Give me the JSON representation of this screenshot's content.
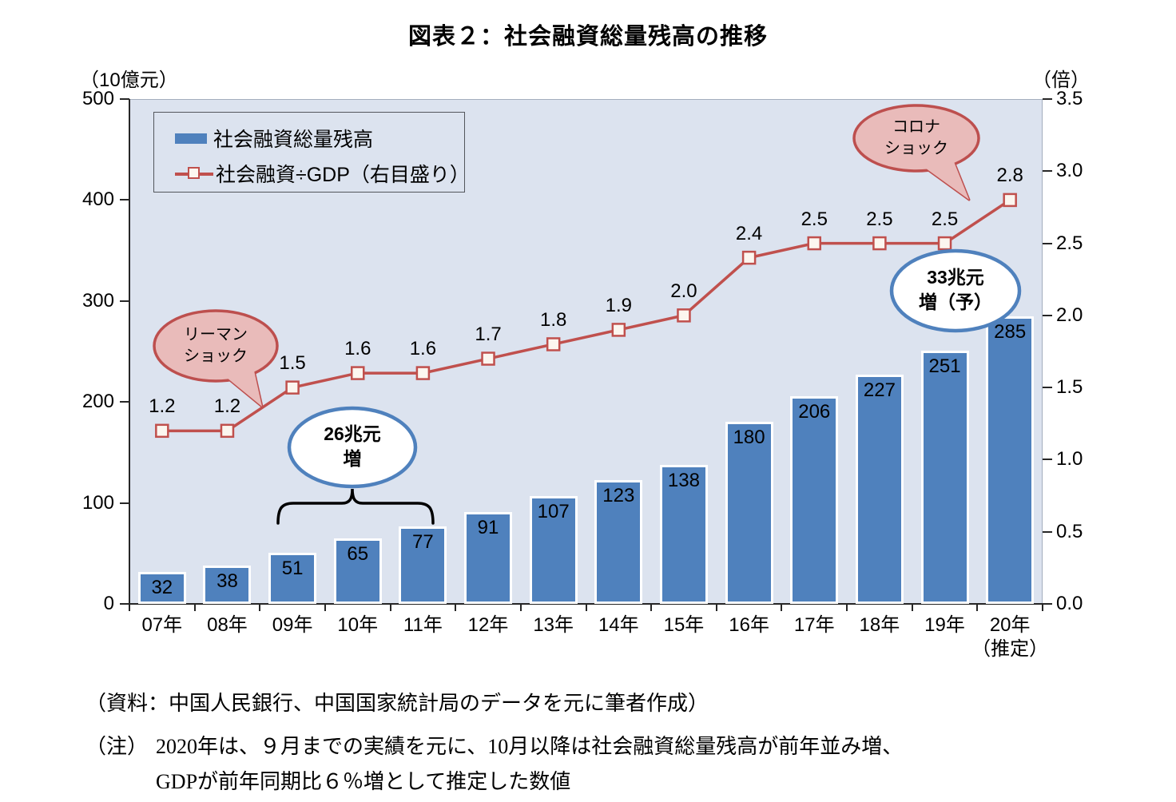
{
  "title": "図表２：社会融資総量残高の推移",
  "axes": {
    "left_unit": "（10億元）",
    "right_unit": "（倍）"
  },
  "legend": {
    "bar": "社会融資総量残高",
    "line": "社会融資÷GDP（右目盛り）"
  },
  "annotations": {
    "lehman": {
      "line1": "リーマン",
      "line2": "ショック"
    },
    "corona": {
      "line1": "コロナ",
      "line2": "ショック"
    },
    "increase26": {
      "line1": "26兆元",
      "line2": "増"
    },
    "increase33": {
      "line1": "33兆元",
      "line2": "増（予）"
    }
  },
  "footer": {
    "source": "（資料：中国人民銀行、中国国家統計局のデータを元に筆者作成）",
    "note_label": "（注）",
    "note_line1": "2020年は、９月までの実績を元に、10月以降は社会融資総量残高が前年並み増、",
    "note_line2": "GDPが前年同期比６％増として推定した数値"
  },
  "colors": {
    "bar": "#4f81bd",
    "line": "#c0504d",
    "marker_fill": "#fcf6ef",
    "plot_background": "#dce3ef",
    "balloon_fill": "#e9bbba",
    "balloon_stroke": "#bd4f4e",
    "ellipse_stroke": "#4f81bd"
  },
  "chart_data": {
    "type": "bar",
    "categories": [
      "07年",
      "08年",
      "09年",
      "10年",
      "11年",
      "12年",
      "13年",
      "14年",
      "15年",
      "16年",
      "17年",
      "18年",
      "19年",
      "20年"
    ],
    "last_category_suffix": "（推定）",
    "series": [
      {
        "name": "社会融資総量残高",
        "type": "bar",
        "axis": "left",
        "values": [
          32,
          38,
          51,
          65,
          77,
          91,
          107,
          123,
          138,
          180,
          206,
          227,
          251,
          285
        ]
      },
      {
        "name": "社会融資÷GDP（右目盛り）",
        "type": "line",
        "axis": "right",
        "values": [
          1.2,
          1.2,
          1.5,
          1.6,
          1.6,
          1.7,
          1.8,
          1.9,
          2.0,
          2.4,
          2.5,
          2.5,
          2.5,
          2.8
        ]
      }
    ],
    "left_axis": {
      "min": 0,
      "max": 500,
      "step": 100,
      "unit": "10億元"
    },
    "right_axis": {
      "min": 0.0,
      "max": 3.5,
      "step": 0.5,
      "unit": "倍"
    },
    "grid": false,
    "legend_position": "top-left",
    "title": "図表２：社会融資総量残高の推移"
  }
}
